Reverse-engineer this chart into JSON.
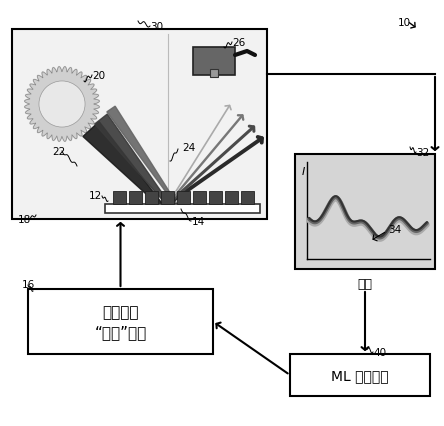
{
  "bg_color": "#ffffff",
  "label_10": "10",
  "label_30": "30",
  "label_20": "20",
  "label_22": "22",
  "label_24": "24",
  "label_26": "26",
  "label_12": "12",
  "label_14": "14",
  "label_18": "18",
  "label_16": "16",
  "label_32": "32",
  "label_34": "34",
  "label_40": "40",
  "box16_text1": "过程控制",
  "box16_text2": "“旋钮”设置",
  "box40_text": "ML 建模系统",
  "wavelength_label": "波长",
  "intensity_label": "I"
}
